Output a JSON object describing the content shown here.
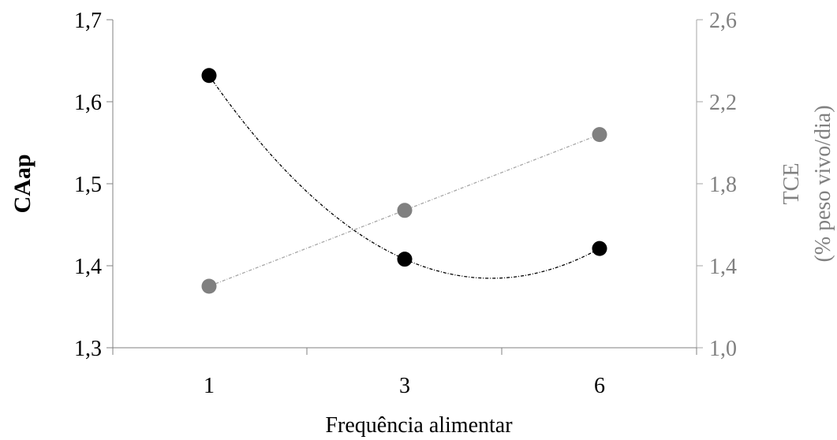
{
  "chart_data": {
    "type": "line",
    "categories": [
      "1",
      "3",
      "6"
    ],
    "xlabel": "Frequência alimentar",
    "ylabel_left": "CAap",
    "ylabel_right_line1": "TCE",
    "ylabel_right_line2": "(% peso vivo/dia)",
    "y_left": {
      "lim": [
        1.3,
        1.7
      ],
      "ticks": [
        "1,3",
        "1,4",
        "1,5",
        "1,6",
        "1,7"
      ]
    },
    "y_right": {
      "lim": [
        1.0,
        2.6
      ],
      "ticks": [
        "1,0",
        "1,4",
        "1,8",
        "2,2",
        "2,6"
      ]
    },
    "grid": false,
    "series": [
      {
        "axis": "left",
        "color": "#000000",
        "trendline": "polynomial",
        "values": [
          1.632,
          1.408,
          1.421
        ]
      },
      {
        "axis": "right",
        "color": "#808080",
        "trendline": "linear",
        "values": [
          1.3,
          1.67,
          2.04
        ]
      }
    ]
  },
  "colors": {
    "axis_left": "#808080",
    "axis_right": "#a6a6a6",
    "text_dark": "#000000",
    "text_gray": "#808080"
  }
}
